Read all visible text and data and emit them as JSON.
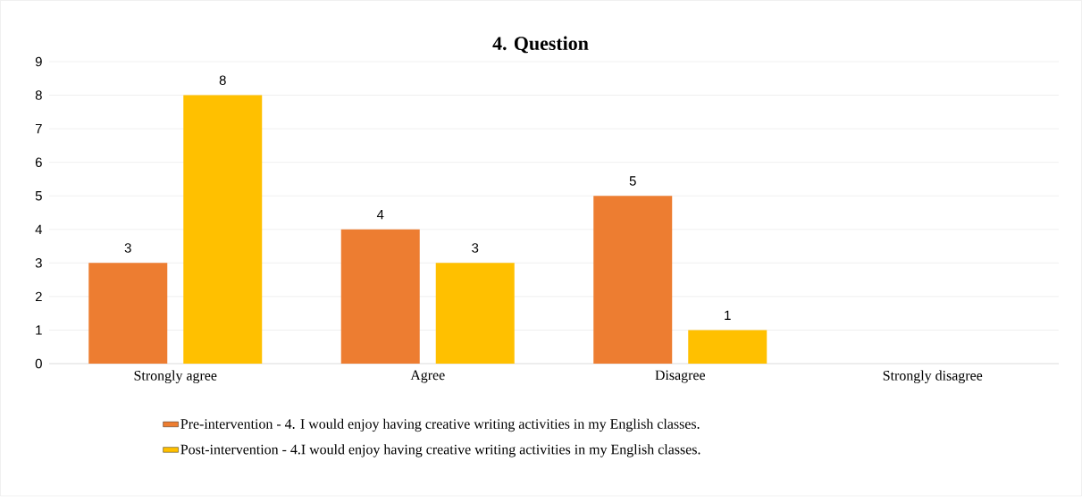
{
  "chart_data": {
    "type": "bar",
    "title": "4. Question",
    "categories": [
      "Strongly agree",
      "Agree",
      "Disagree",
      "Strongly disagree"
    ],
    "series": [
      {
        "name": "Pre-intervention - 4. I would enjoy having creative writing activities in my English classes.",
        "color": "#ed7d31",
        "values": [
          3,
          4,
          5,
          0
        ],
        "value_labels": [
          "3",
          "4",
          "5",
          null
        ]
      },
      {
        "name": "Post-intervention - 4.I would enjoy having creative writing activities in my English classes.",
        "color": "#ffc000",
        "values": [
          8,
          3,
          1,
          0
        ],
        "value_labels": [
          "8",
          "3",
          "1",
          null
        ]
      }
    ],
    "ylim": [
      0,
      9
    ],
    "yticks": [
      0,
      1,
      2,
      3,
      4,
      5,
      6,
      7,
      8,
      9
    ],
    "grid": "y",
    "legend": "bottom"
  }
}
